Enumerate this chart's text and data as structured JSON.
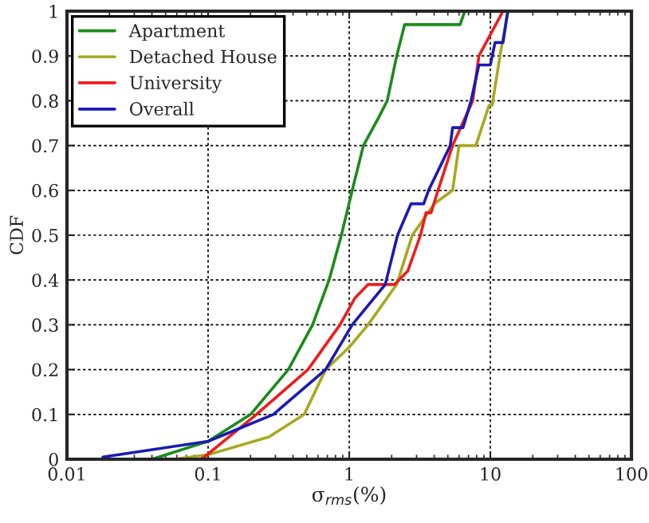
{
  "chart_data": {
    "type": "line",
    "xlabel": "σ$_{rms}$(%)",
    "ylabel": "CDF",
    "log": "x",
    "grid": true,
    "legend": "top left",
    "line_style": "solid",
    "marker": "none",
    "xlim": [
      0.01,
      100
    ],
    "xticks": [
      0.01,
      0.1,
      1,
      10,
      100
    ],
    "ylim": [
      0,
      1
    ],
    "yticks": [
      0,
      0.1,
      0.2,
      0.3,
      0.4,
      0.5,
      0.6,
      0.7,
      0.8,
      0.9,
      1
    ],
    "series": [
      {
        "name": "Apartment",
        "color": "#1a8c1a",
        "x": [
          0.04,
          0.1,
          0.2,
          0.37,
          0.55,
          0.72,
          0.88,
          1.05,
          1.26,
          1.6,
          1.86,
          2.17,
          2.47,
          6.1,
          6.6
        ],
        "values": [
          0,
          0.04,
          0.1,
          0.2,
          0.3,
          0.4,
          0.5,
          0.6,
          0.7,
          0.76,
          0.8,
          0.9,
          0.97,
          0.97,
          1
        ]
      },
      {
        "name": "Detached House",
        "color": "#a8a820",
        "x": [
          0.057,
          0.1,
          0.27,
          0.48,
          0.68,
          1.0,
          1.36,
          2.17,
          2.8,
          4.0,
          5.4,
          6.0,
          7.9,
          9.8,
          10.3,
          11.7,
          13.3
        ],
        "values": [
          0,
          0.01,
          0.05,
          0.1,
          0.2,
          0.25,
          0.3,
          0.39,
          0.5,
          0.57,
          0.6,
          0.7,
          0.7,
          0.79,
          0.79,
          0.9,
          1
        ]
      },
      {
        "name": "University",
        "color": "#ee1c1c",
        "x": [
          0.09,
          0.22,
          0.51,
          0.86,
          1.1,
          1.36,
          2.1,
          2.6,
          3.2,
          3.5,
          3.8,
          4.26,
          5.4,
          7.5,
          8.3,
          12.3
        ],
        "values": [
          0,
          0.1,
          0.2,
          0.3,
          0.36,
          0.39,
          0.39,
          0.42,
          0.5,
          0.55,
          0.55,
          0.6,
          0.7,
          0.8,
          0.9,
          1
        ]
      },
      {
        "name": "Overall",
        "color": "#1a1ab4",
        "x": [
          0.018,
          0.1,
          0.29,
          0.68,
          1.05,
          1.8,
          2.2,
          2.74,
          3.37,
          3.65,
          5.2,
          5.4,
          6.4,
          7.3,
          8.3,
          10.0,
          10.8,
          12.3,
          13.3
        ],
        "values": [
          0.005,
          0.04,
          0.1,
          0.2,
          0.3,
          0.39,
          0.5,
          0.57,
          0.57,
          0.6,
          0.7,
          0.74,
          0.74,
          0.8,
          0.88,
          0.88,
          0.93,
          0.93,
          1
        ]
      }
    ]
  }
}
